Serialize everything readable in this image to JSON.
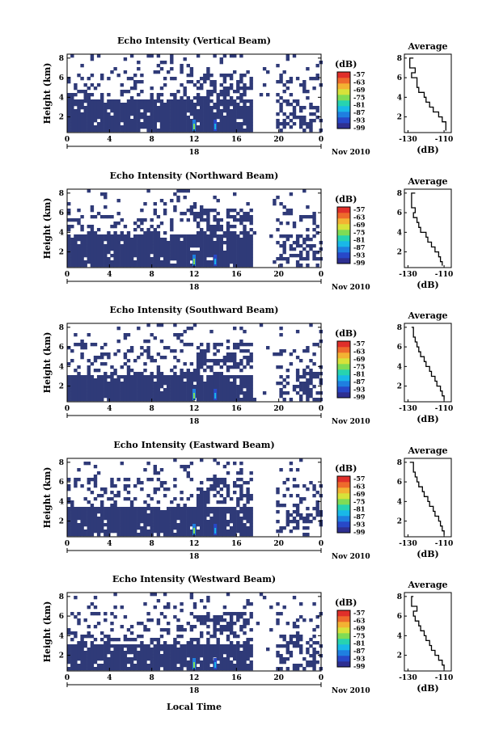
{
  "colors": {
    "echo": "#2f3a78",
    "colormap": [
      "#2e2f91",
      "#2848c8",
      "#1f7fe0",
      "#19b8e8",
      "#27d3b0",
      "#7fdc55",
      "#d7e23a",
      "#f3b233",
      "#ee6a2c",
      "#e02f2a"
    ]
  },
  "common": {
    "xaxis": {
      "ticks": [
        "0",
        "4",
        "8",
        "12",
        "16",
        "20",
        "0"
      ],
      "range": [
        0,
        24
      ]
    },
    "date_label": "18",
    "month_label": "Nov 2010",
    "xlabel": "Local Time",
    "ylabel": "Height (km)",
    "yticks": [
      "2",
      "4",
      "6",
      "8"
    ],
    "colorbar": {
      "unit": "(dB)",
      "labels": [
        "-57",
        "-63",
        "-69",
        "-75",
        "-81",
        "-87",
        "-93",
        "-99"
      ]
    },
    "avg_title": "Average",
    "avg_xticks": [
      "-130",
      "-110"
    ],
    "avg_xlabel": "(dB)",
    "avg_yticks": [
      "2",
      "4",
      "6",
      "8"
    ]
  },
  "chart_data": [
    {
      "type": "heatmap",
      "title": "Echo Intensity (Vertical Beam)",
      "xlabel": "Local Time",
      "ylabel": "Height (km)",
      "xlim": [
        0,
        24
      ],
      "ylim": [
        0.4,
        8.4
      ],
      "clim": [
        -99,
        -57
      ],
      "colorbar_label": "(dB)",
      "dense_layer": {
        "from_hour": 0,
        "to_hour": 17.5,
        "bottom_km": 0.8,
        "top_km": 3.8
      },
      "profile": {
        "title": "Average",
        "xlabel": "(dB)",
        "xlim": [
          -132,
          -106
        ],
        "ylim": [
          0.4,
          8.4
        ],
        "heights": [
          8.0,
          7.0,
          6.5,
          6.0,
          5.5,
          5.0,
          4.5,
          4.0,
          3.5,
          3.0,
          2.5,
          2.0,
          1.5,
          1.0,
          0.6
        ],
        "values": [
          -127,
          -129,
          -126,
          -128,
          -125,
          -125,
          -124,
          -121,
          -120,
          -118,
          -116,
          -113,
          -111,
          -109,
          -109
        ]
      }
    },
    {
      "type": "heatmap",
      "title": "Echo Intensity (Northward Beam)",
      "xlabel": "Local Time",
      "ylabel": "Height (km)",
      "xlim": [
        0,
        24
      ],
      "ylim": [
        0.4,
        8.4
      ],
      "clim": [
        -99,
        -57
      ],
      "colorbar_label": "(dB)",
      "dense_layer": {
        "from_hour": 0,
        "to_hour": 17.5,
        "bottom_km": 0.8,
        "top_km": 3.8
      },
      "profile": {
        "title": "Average",
        "xlabel": "(dB)",
        "xlim": [
          -132,
          -106
        ],
        "ylim": [
          0.4,
          8.4
        ],
        "heights": [
          8.0,
          7.0,
          6.5,
          6.0,
          5.5,
          5.0,
          4.5,
          4.0,
          3.5,
          3.0,
          2.5,
          2.0,
          1.5,
          1.0,
          0.6
        ],
        "values": [
          -126,
          -128,
          -128,
          -126,
          -127,
          -125,
          -124,
          -123,
          -120,
          -119,
          -117,
          -115,
          -113,
          -112,
          -111
        ]
      }
    },
    {
      "type": "heatmap",
      "title": "Echo Intensity (Southward Beam)",
      "xlabel": "Local Time",
      "ylabel": "Height (km)",
      "xlim": [
        0,
        24
      ],
      "ylim": [
        0.4,
        8.4
      ],
      "clim": [
        -99,
        -57
      ],
      "colorbar_label": "(dB)",
      "dense_layer": {
        "from_hour": 0,
        "to_hour": 17.5,
        "bottom_km": 0.8,
        "top_km": 3.2
      },
      "profile": {
        "title": "Average",
        "xlabel": "(dB)",
        "xlim": [
          -132,
          -106
        ],
        "ylim": [
          0.4,
          8.4
        ],
        "heights": [
          8.0,
          7.0,
          6.5,
          6.0,
          5.5,
          5.0,
          4.5,
          4.0,
          3.5,
          3.0,
          2.5,
          2.0,
          1.5,
          1.0,
          0.6
        ],
        "values": [
          -128,
          -127,
          -126,
          -125,
          -124,
          -123,
          -121,
          -120,
          -118,
          -117,
          -115,
          -114,
          -112,
          -111,
          -110
        ]
      }
    },
    {
      "type": "heatmap",
      "title": "Echo Intensity (Eastward Beam)",
      "xlabel": "Local Time",
      "ylabel": "Height (km)",
      "xlim": [
        0,
        24
      ],
      "ylim": [
        0.4,
        8.4
      ],
      "clim": [
        -99,
        -57
      ],
      "colorbar_label": "(dB)",
      "dense_layer": {
        "from_hour": 0,
        "to_hour": 17.5,
        "bottom_km": 0.8,
        "top_km": 3.6
      },
      "profile": {
        "title": "Average",
        "xlabel": "(dB)",
        "xlim": [
          -132,
          -106
        ],
        "ylim": [
          0.4,
          8.4
        ],
        "heights": [
          8.0,
          7.0,
          6.5,
          6.0,
          5.5,
          5.0,
          4.5,
          4.0,
          3.5,
          3.0,
          2.5,
          2.0,
          1.5,
          1.0,
          0.6
        ],
        "values": [
          -129,
          -127,
          -126,
          -125,
          -124,
          -122,
          -121,
          -119,
          -118,
          -116,
          -115,
          -113,
          -112,
          -111,
          -110
        ]
      }
    },
    {
      "type": "heatmap",
      "title": "Echo Intensity (Westward Beam)",
      "xlabel": "Local Time",
      "ylabel": "Height (km)",
      "xlim": [
        0,
        24
      ],
      "ylim": [
        0.4,
        8.4
      ],
      "clim": [
        -99,
        -57
      ],
      "colorbar_label": "(dB)",
      "dense_layer": {
        "from_hour": 0,
        "to_hour": 17.5,
        "bottom_km": 0.8,
        "top_km": 3.2
      },
      "profile": {
        "title": "Average",
        "xlabel": "(dB)",
        "xlim": [
          -132,
          -106
        ],
        "ylim": [
          0.4,
          8.4
        ],
        "heights": [
          8.0,
          7.0,
          6.5,
          6.0,
          5.5,
          5.0,
          4.5,
          4.0,
          3.5,
          3.0,
          2.5,
          2.0,
          1.5,
          1.0,
          0.6
        ],
        "values": [
          -127,
          -128,
          -125,
          -127,
          -126,
          -124,
          -123,
          -121,
          -120,
          -118,
          -117,
          -115,
          -113,
          -111,
          -110
        ]
      }
    }
  ]
}
